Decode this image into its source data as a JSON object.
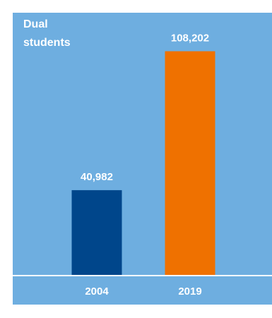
{
  "chart_data": {
    "type": "bar",
    "title_lines": [
      "Dual",
      "students"
    ],
    "categories": [
      "2004",
      "2019"
    ],
    "values": [
      40982,
      108202
    ],
    "value_labels": [
      "40,982",
      "108,202"
    ],
    "bar_colors": [
      "#00468b",
      "#ef7100"
    ],
    "background_color": "#6eaee0",
    "axis_color": "#ffffff",
    "text_color": "#ffffff",
    "ylim": [
      0,
      120000
    ],
    "grid": false,
    "legend": "none"
  }
}
